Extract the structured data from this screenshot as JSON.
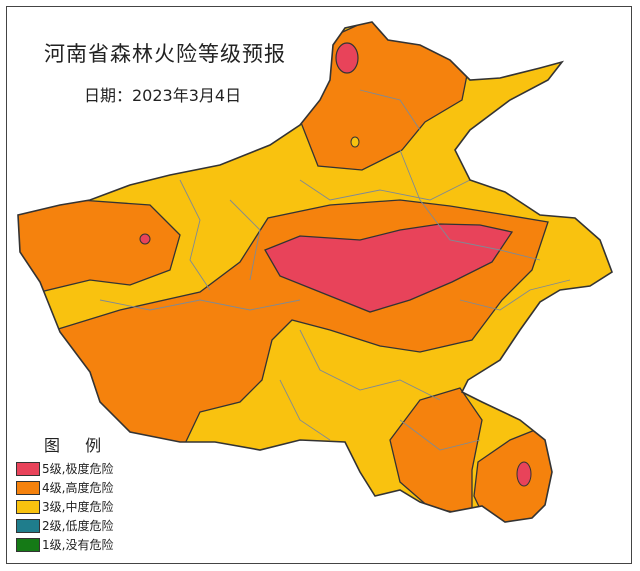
{
  "map": {
    "title": "河南省森林火险等级预报",
    "date": "日期：2023年3月4日",
    "legend_title": "图 例",
    "legend": [
      {
        "label": "5级,极度危险",
        "color": "#e8435a"
      },
      {
        "label": "4级,高度危险",
        "color": "#f5820d"
      },
      {
        "label": "3级,中度危险",
        "color": "#f9c20f"
      },
      {
        "label": "2级,低度危险",
        "color": "#1f7d8c"
      },
      {
        "label": "1级,没有危险",
        "color": "#157a16"
      }
    ],
    "boundary_color": "#7f8a94"
  }
}
